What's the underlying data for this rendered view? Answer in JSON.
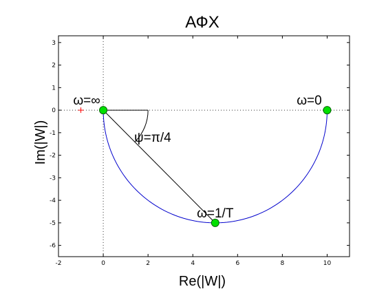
{
  "chart_data": {
    "type": "line",
    "title": "АФХ",
    "xlabel": "Re(|W|)",
    "ylabel": "Im(|W|)",
    "xlim": [
      -2,
      11
    ],
    "ylim": [
      -6.5,
      3.3
    ],
    "xticks": [
      "-2",
      "0",
      "2",
      "4",
      "6",
      "8",
      "10"
    ],
    "xtick_values": [
      -2,
      0,
      2,
      4,
      6,
      8,
      10
    ],
    "yticks": [
      "3",
      "2",
      "1",
      "0",
      "-1",
      "-2",
      "-3",
      "-4",
      "-5",
      "-6"
    ],
    "ytick_values": [
      3,
      2,
      1,
      0,
      -1,
      -2,
      -3,
      -4,
      -5,
      -6
    ],
    "grid": false,
    "curve": {
      "kind": "semicircle",
      "center": [
        5,
        0
      ],
      "radius": 5,
      "color": "#0000cc"
    },
    "points": [
      {
        "x": 0,
        "y": 0,
        "label": "ω=∞"
      },
      {
        "x": 10,
        "y": 0,
        "label": "ω=0"
      },
      {
        "x": 5,
        "y": -5,
        "label": "ω=1/T"
      }
    ],
    "marker_color": "#00e000",
    "cross_marker": {
      "x": -1,
      "y": 0,
      "color": "#ff0000"
    },
    "chord": {
      "from": [
        0,
        0
      ],
      "to": [
        5,
        -5
      ]
    },
    "angle_annotation": "ψ=π/4"
  }
}
